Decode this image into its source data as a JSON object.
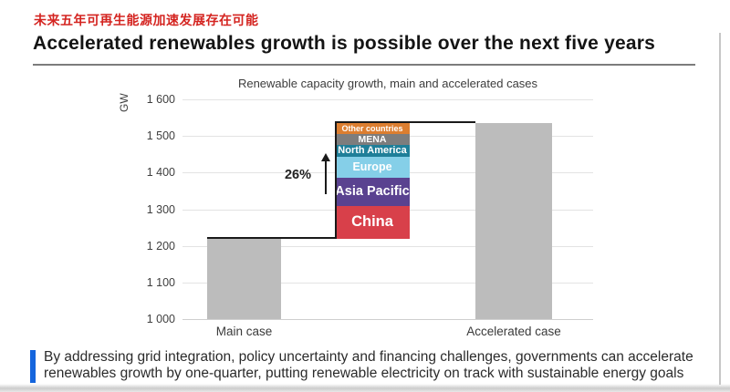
{
  "header": {
    "subtitle_zh": "未来五年可再生能源加速发展存在可能",
    "title": "Accelerated renewables growth is possible over the next five years"
  },
  "chart_data": {
    "type": "bar",
    "title": "Renewable capacity growth, main and accelerated cases",
    "ylabel": "GW",
    "ylim": [
      1000,
      1600
    ],
    "ytick_values": [
      1000,
      1100,
      1200,
      1300,
      1400,
      1500,
      1600
    ],
    "ytick_labels": [
      "1 000",
      "1 100",
      "1 200",
      "1 300",
      "1 400",
      "1 500",
      "1 600"
    ],
    "categories": [
      "Main case",
      "Accelerated case"
    ],
    "bars": {
      "main_case_total_gw": 1220,
      "accelerated_case_total_gw": 1535,
      "bar_color": "#bcbcbc"
    },
    "growth_annotation": "26%",
    "stack_segments": [
      {
        "name": "China",
        "value_gw": 89,
        "color": "#d8404a"
      },
      {
        "name": "Asia Pacific",
        "value_gw": 77,
        "color": "#5a4290"
      },
      {
        "name": "Europe",
        "value_gw": 58,
        "color": "#85cfe8"
      },
      {
        "name": "North America",
        "value_gw": 32,
        "color": "#1f7f99"
      },
      {
        "name": "MENA",
        "value_gw": 30,
        "color": "#7d7d7d"
      },
      {
        "name": "Other countries",
        "value_gw": 29,
        "color": "#dc7e30"
      }
    ],
    "grid": true,
    "legend_position": "labels-inside-segments"
  },
  "footer": {
    "lines": [
      "By addressing grid integration, policy uncertainty and financing challenges, governments can accelerate",
      "renewables growth by one-quarter, putting renewable electricity on track with sustainable energy goals"
    ],
    "accent_color": "#1565dd"
  },
  "colors": {
    "subtitle_red": "#d42420",
    "title_text": "#141414",
    "gridline": "#e3e3e3"
  }
}
